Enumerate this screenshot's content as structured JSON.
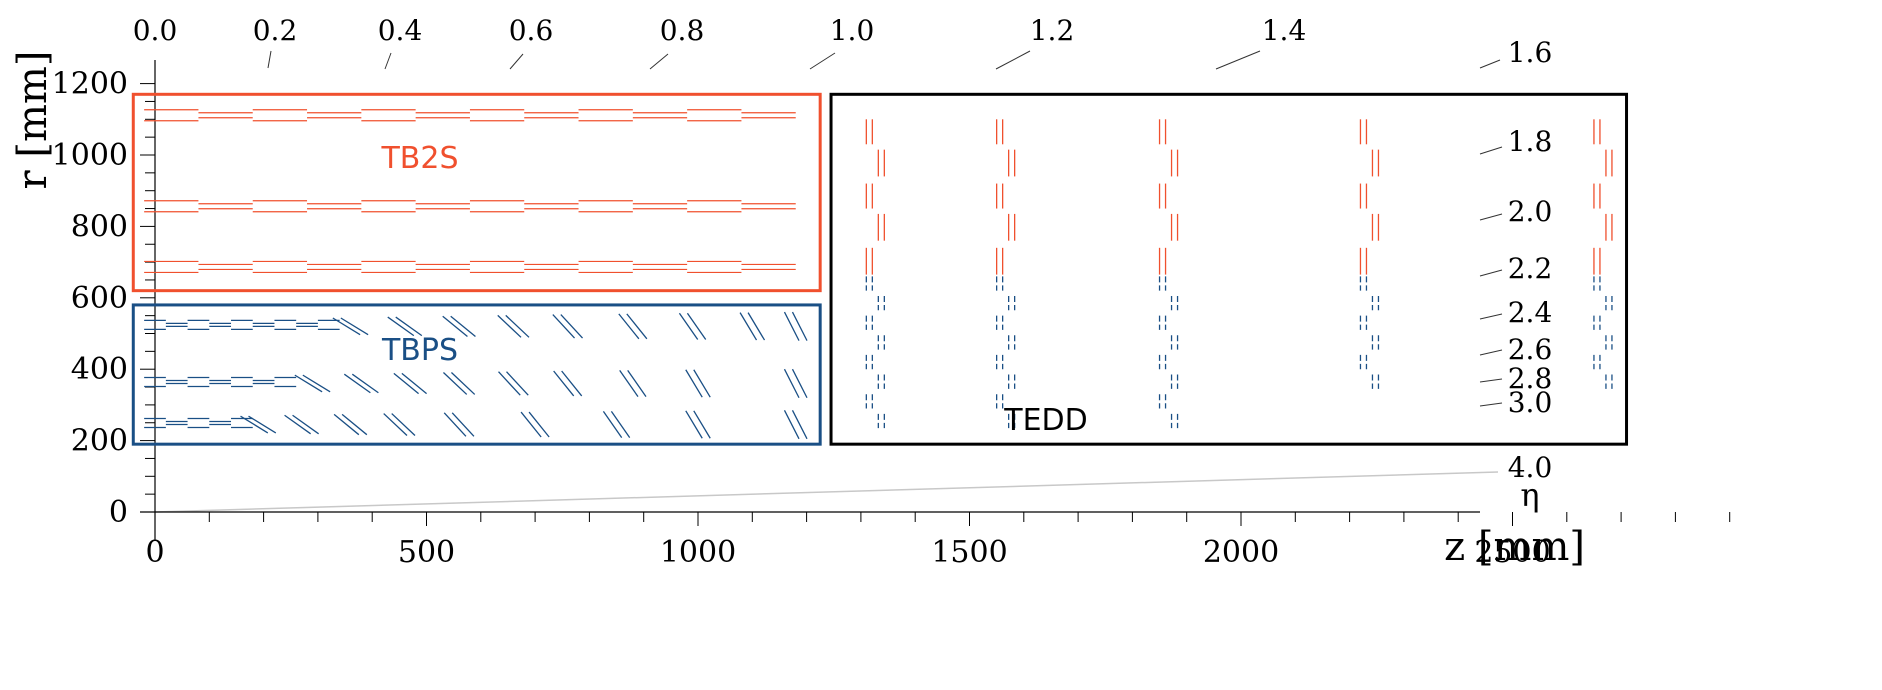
{
  "chart_data": {
    "type": "diagram",
    "z_axis": {
      "label": "z [mm]",
      "ticks": [
        "0",
        "500",
        "1000",
        "1500",
        "2000",
        "2500"
      ],
      "range": [
        0,
        2900
      ]
    },
    "r_axis": {
      "label": "r [mm]",
      "ticks": [
        "0",
        "200",
        "400",
        "600",
        "800",
        "1000",
        "1200"
      ],
      "range": [
        0,
        1200
      ]
    },
    "eta_axis": {
      "symbol": "η",
      "ticks": [
        "0.0",
        "0.2",
        "0.4",
        "0.6",
        "0.8",
        "1.0",
        "1.2",
        "1.4",
        "1.6",
        "1.8",
        "2.0",
        "2.2",
        "2.4",
        "2.6",
        "2.8",
        "3.0",
        "4.0"
      ]
    },
    "regions": [
      {
        "name": "TB2S",
        "color": "#f0502e",
        "z": [
          -40,
          1225
        ],
        "r": [
          620,
          1170
        ]
      },
      {
        "name": "TBPS",
        "color": "#1a4f85",
        "z": [
          -40,
          1225
        ],
        "r": [
          190,
          580
        ]
      },
      {
        "name": "TEDD",
        "color": "#000000",
        "z": [
          1245,
          2710
        ],
        "r": [
          190,
          1170
        ]
      }
    ],
    "tb2s_layers_r": [
      1110,
      855,
      685
    ],
    "tbps_layers_r": [
      520,
      360,
      245
    ],
    "tedd_disk_z": [
      1310,
      1550,
      1850,
      2220,
      2650
    ]
  }
}
